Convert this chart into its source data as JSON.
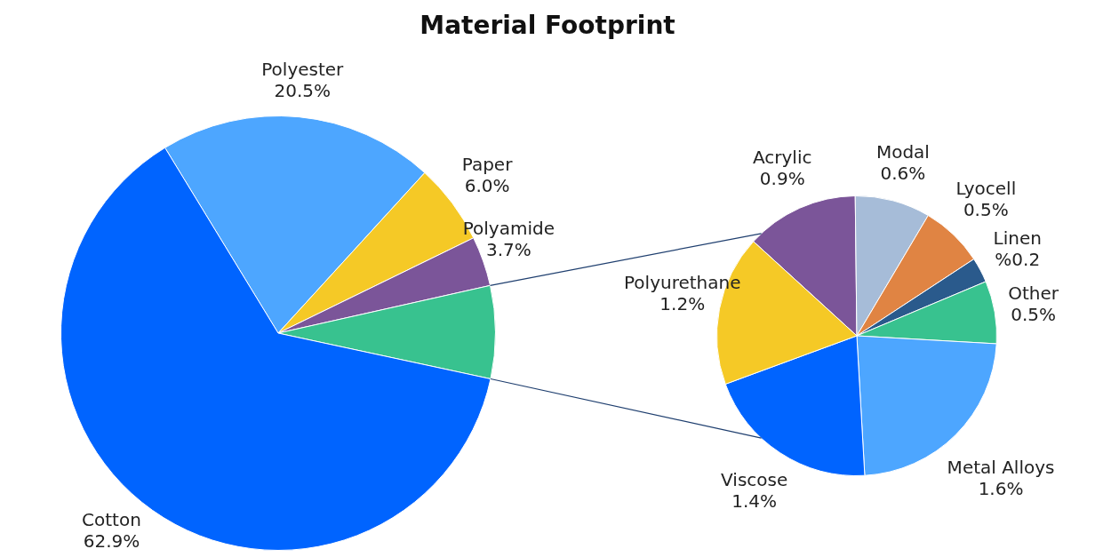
{
  "chart_data": [
    {
      "type": "pie",
      "title": "Material Footprint",
      "categories": [
        "Polyester",
        "Paper",
        "Polyamide",
        null,
        "Cotton"
      ],
      "values": [
        20.5,
        6.0,
        3.7,
        6.9,
        62.9
      ],
      "value_labels": [
        "20.5%",
        "6.0%",
        "3.7%",
        null,
        "62.9%"
      ],
      "colors": [
        "#4da6ff",
        "#f5c926",
        "#7b5599",
        "#38c28f",
        "#0064ff"
      ],
      "legend": false
    },
    {
      "type": "pie",
      "categories": [
        "Acrylic",
        "Modal",
        "Lyocell",
        "Linen",
        "Other",
        "Metal Alloys",
        "Viscose",
        "Polyurethane"
      ],
      "values": [
        0.9,
        0.6,
        0.5,
        0.2,
        0.5,
        1.6,
        1.4,
        1.2
      ],
      "value_labels": [
        "0.9%",
        "0.6%",
        "0.5%",
        "%0.2",
        "0.5%",
        "1.6%",
        "1.4%",
        "1.2%"
      ],
      "colors": [
        "#7b5599",
        "#a6bcd8",
        "#e08443",
        "#2a5a8c",
        "#38c28f",
        "#4da6ff",
        "#0064ff",
        "#f5c926"
      ],
      "legend": false
    }
  ]
}
